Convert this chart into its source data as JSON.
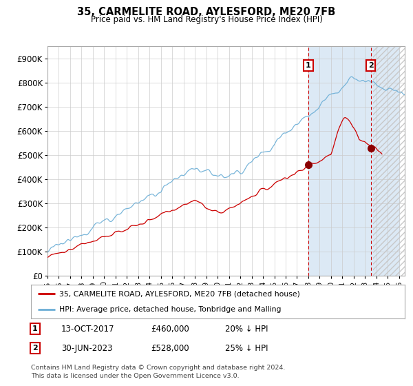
{
  "title": "35, CARMELITE ROAD, AYLESFORD, ME20 7FB",
  "subtitle": "Price paid vs. HM Land Registry's House Price Index (HPI)",
  "ylim": [
    0,
    950000
  ],
  "yticks": [
    0,
    100000,
    200000,
    300000,
    400000,
    500000,
    600000,
    700000,
    800000,
    900000
  ],
  "ytick_labels": [
    "£0",
    "£100K",
    "£200K",
    "£300K",
    "£400K",
    "£500K",
    "£600K",
    "£700K",
    "£800K",
    "£900K"
  ],
  "hpi_color": "#6baed6",
  "price_color": "#cc0000",
  "marker_color": "#8b0000",
  "vline_color": "#cc0000",
  "sale1_x": 2018.0,
  "sale2_x": 2023.5,
  "sale1_price": 460000,
  "sale2_price": 528000,
  "legend_line1": "35, CARMELITE ROAD, AYLESFORD, ME20 7FB (detached house)",
  "legend_line2": "HPI: Average price, detached house, Tonbridge and Malling",
  "table_row1": [
    "1",
    "13-OCT-2017",
    "£460,000",
    "20% ↓ HPI"
  ],
  "table_row2": [
    "2",
    "30-JUN-2023",
    "£528,000",
    "25% ↓ HPI"
  ],
  "footnote": "Contains HM Land Registry data © Crown copyright and database right 2024.\nThis data is licensed under the Open Government Licence v3.0.",
  "background_color": "#ffffff",
  "grid_color": "#cccccc",
  "shaded_color": "#dce9f5",
  "hatch_color": "#bbbbbb",
  "xmin": 1995.5,
  "xmax": 2026.3
}
